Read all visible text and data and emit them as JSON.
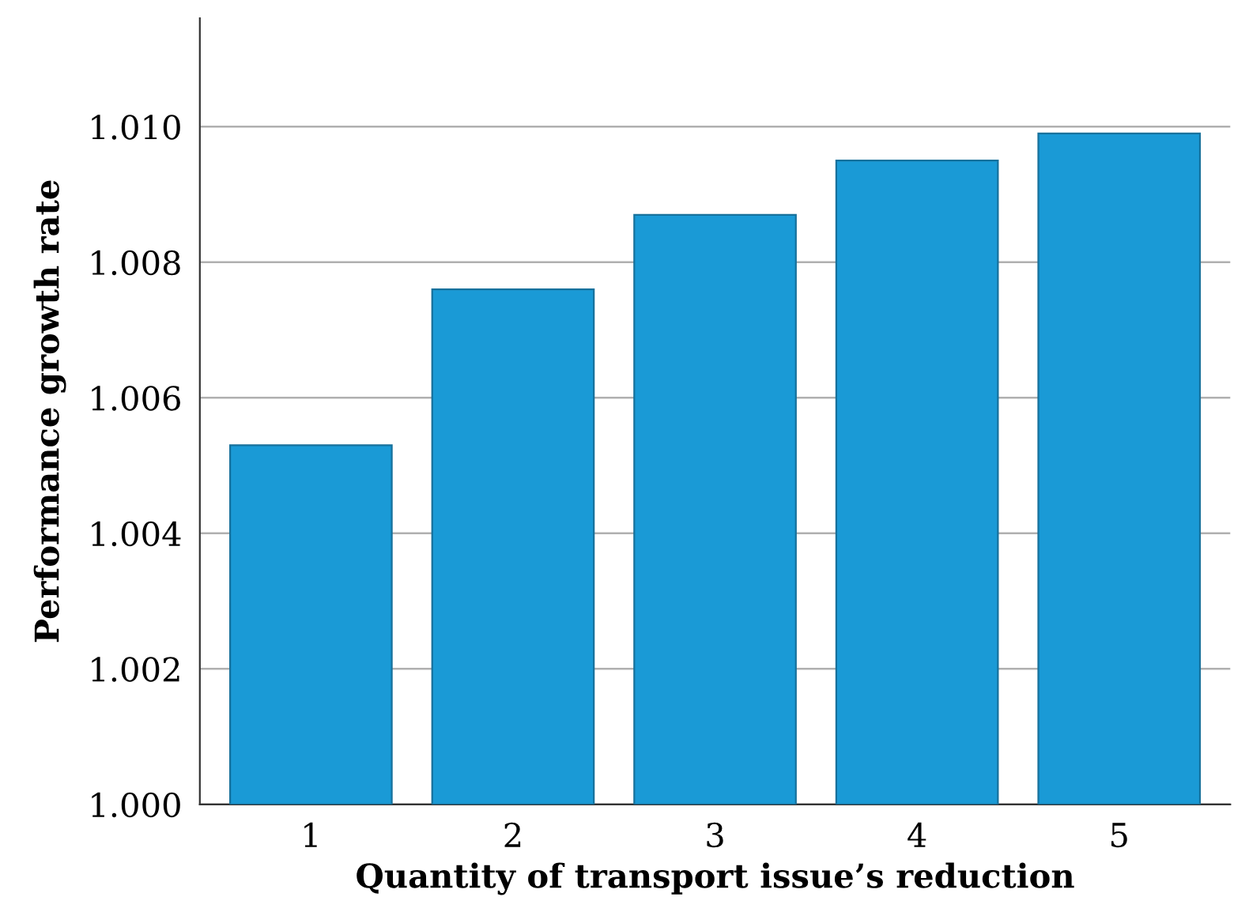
{
  "chart_data": {
    "type": "bar",
    "xlabel": "Quantity of transport issue’s reduction",
    "ylabel": "Performance growth rate",
    "categories": [
      "1",
      "2",
      "3",
      "4",
      "5"
    ],
    "values": [
      1.0053,
      1.0076,
      1.0087,
      1.0095,
      1.0099
    ],
    "color": "#1a9ad6",
    "ylim": [
      1.0,
      1.0116
    ],
    "yticks": [
      {
        "value": 1.0,
        "label": "1.000"
      },
      {
        "value": 1.002,
        "label": "1.002"
      },
      {
        "value": 1.004,
        "label": "1.004"
      },
      {
        "value": 1.006,
        "label": "1.006"
      },
      {
        "value": 1.008,
        "label": "1.008"
      },
      {
        "value": 1.01,
        "label": "1.010"
      }
    ],
    "grid": "y"
  }
}
